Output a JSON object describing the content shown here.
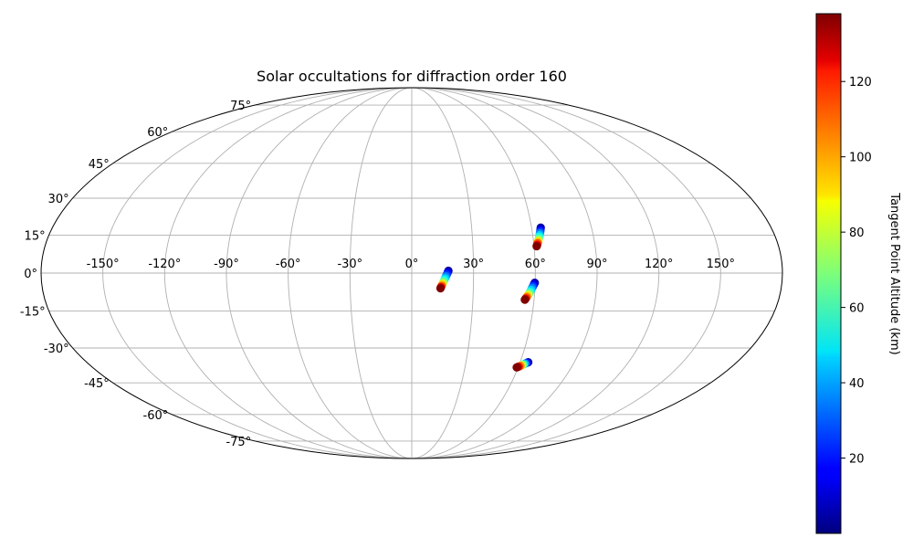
{
  "chart_data": {
    "type": "scatter",
    "projection": "mollweide",
    "title": "Solar occultations for diffraction order 160",
    "grid": true,
    "longitude_ticks": [
      "-150°",
      "-120°",
      "-90°",
      "-60°",
      "-30°",
      "0°",
      "30°",
      "60°",
      "90°",
      "120°",
      "150°"
    ],
    "longitude_values": [
      -150,
      -120,
      -90,
      -60,
      -30,
      0,
      30,
      60,
      90,
      120,
      150
    ],
    "latitude_ticks": [
      "75°",
      "60°",
      "45°",
      "30°",
      "15°",
      "0°",
      "-15°",
      "-30°",
      "-45°",
      "-60°",
      "-75°"
    ],
    "latitude_values": [
      75,
      60,
      45,
      30,
      15,
      0,
      -15,
      -30,
      -45,
      -60,
      -75
    ],
    "colorbar": {
      "label": "Tangent Point Altitude (km)",
      "colormap": "jet",
      "range": [
        0,
        138
      ],
      "ticks": [
        "20",
        "40",
        "60",
        "80",
        "100",
        "120"
      ],
      "tick_values": [
        20,
        40,
        60,
        80,
        100,
        120
      ]
    },
    "series": [
      {
        "points": [
          {
            "lon": 17.8,
            "lat": 0.9,
            "alt": 5
          },
          {
            "lon": 17.4,
            "lat": 0.2,
            "alt": 15
          },
          {
            "lon": 17.0,
            "lat": -0.6,
            "alt": 25
          },
          {
            "lon": 16.6,
            "lat": -1.3,
            "alt": 35
          },
          {
            "lon": 16.2,
            "lat": -2.0,
            "alt": 45
          },
          {
            "lon": 15.8,
            "lat": -2.7,
            "alt": 55
          },
          {
            "lon": 15.4,
            "lat": -3.4,
            "alt": 65
          },
          {
            "lon": 15.1,
            "lat": -4.0,
            "alt": 80
          },
          {
            "lon": 14.8,
            "lat": -4.6,
            "alt": 95
          },
          {
            "lon": 14.5,
            "lat": -5.1,
            "alt": 110
          },
          {
            "lon": 14.2,
            "lat": -5.6,
            "alt": 125
          },
          {
            "lon": 14.0,
            "lat": -6.0,
            "alt": 138
          }
        ]
      },
      {
        "points": [
          {
            "lon": 64.6,
            "lat": 18.0,
            "alt": 5
          },
          {
            "lon": 64.3,
            "lat": 17.2,
            "alt": 15
          },
          {
            "lon": 64.0,
            "lat": 16.4,
            "alt": 25
          },
          {
            "lon": 63.7,
            "lat": 15.7,
            "alt": 35
          },
          {
            "lon": 63.4,
            "lat": 15.0,
            "alt": 45
          },
          {
            "lon": 63.1,
            "lat": 14.3,
            "alt": 55
          },
          {
            "lon": 62.8,
            "lat": 13.6,
            "alt": 65
          },
          {
            "lon": 62.5,
            "lat": 12.9,
            "alt": 80
          },
          {
            "lon": 62.2,
            "lat": 12.3,
            "alt": 95
          },
          {
            "lon": 61.9,
            "lat": 11.7,
            "alt": 110
          },
          {
            "lon": 61.6,
            "lat": 11.1,
            "alt": 125
          },
          {
            "lon": 61.3,
            "lat": 10.6,
            "alt": 138
          }
        ]
      },
      {
        "points": [
          {
            "lon": 59.8,
            "lat": -3.8,
            "alt": 5
          },
          {
            "lon": 59.4,
            "lat": -4.5,
            "alt": 15
          },
          {
            "lon": 59.0,
            "lat": -5.2,
            "alt": 25
          },
          {
            "lon": 58.6,
            "lat": -5.9,
            "alt": 35
          },
          {
            "lon": 58.2,
            "lat": -6.6,
            "alt": 45
          },
          {
            "lon": 57.8,
            "lat": -7.3,
            "alt": 55
          },
          {
            "lon": 57.4,
            "lat": -7.9,
            "alt": 65
          },
          {
            "lon": 57.0,
            "lat": -8.5,
            "alt": 80
          },
          {
            "lon": 56.6,
            "lat": -9.1,
            "alt": 95
          },
          {
            "lon": 56.2,
            "lat": -9.6,
            "alt": 110
          },
          {
            "lon": 55.8,
            "lat": -10.1,
            "alt": 125
          },
          {
            "lon": 55.5,
            "lat": -10.5,
            "alt": 138
          }
        ]
      },
      {
        "points": [
          {
            "lon": 64.5,
            "lat": -36.0,
            "alt": 5
          },
          {
            "lon": 63.8,
            "lat": -36.3,
            "alt": 20
          },
          {
            "lon": 63.1,
            "lat": -36.6,
            "alt": 40
          },
          {
            "lon": 62.4,
            "lat": -36.9,
            "alt": 60
          },
          {
            "lon": 61.7,
            "lat": -37.2,
            "alt": 80
          },
          {
            "lon": 61.0,
            "lat": -37.5,
            "alt": 100
          },
          {
            "lon": 60.3,
            "lat": -37.8,
            "alt": 115
          },
          {
            "lon": 59.7,
            "lat": -38.0,
            "alt": 130
          },
          {
            "lon": 59.2,
            "lat": -38.2,
            "alt": 138
          }
        ]
      }
    ]
  }
}
